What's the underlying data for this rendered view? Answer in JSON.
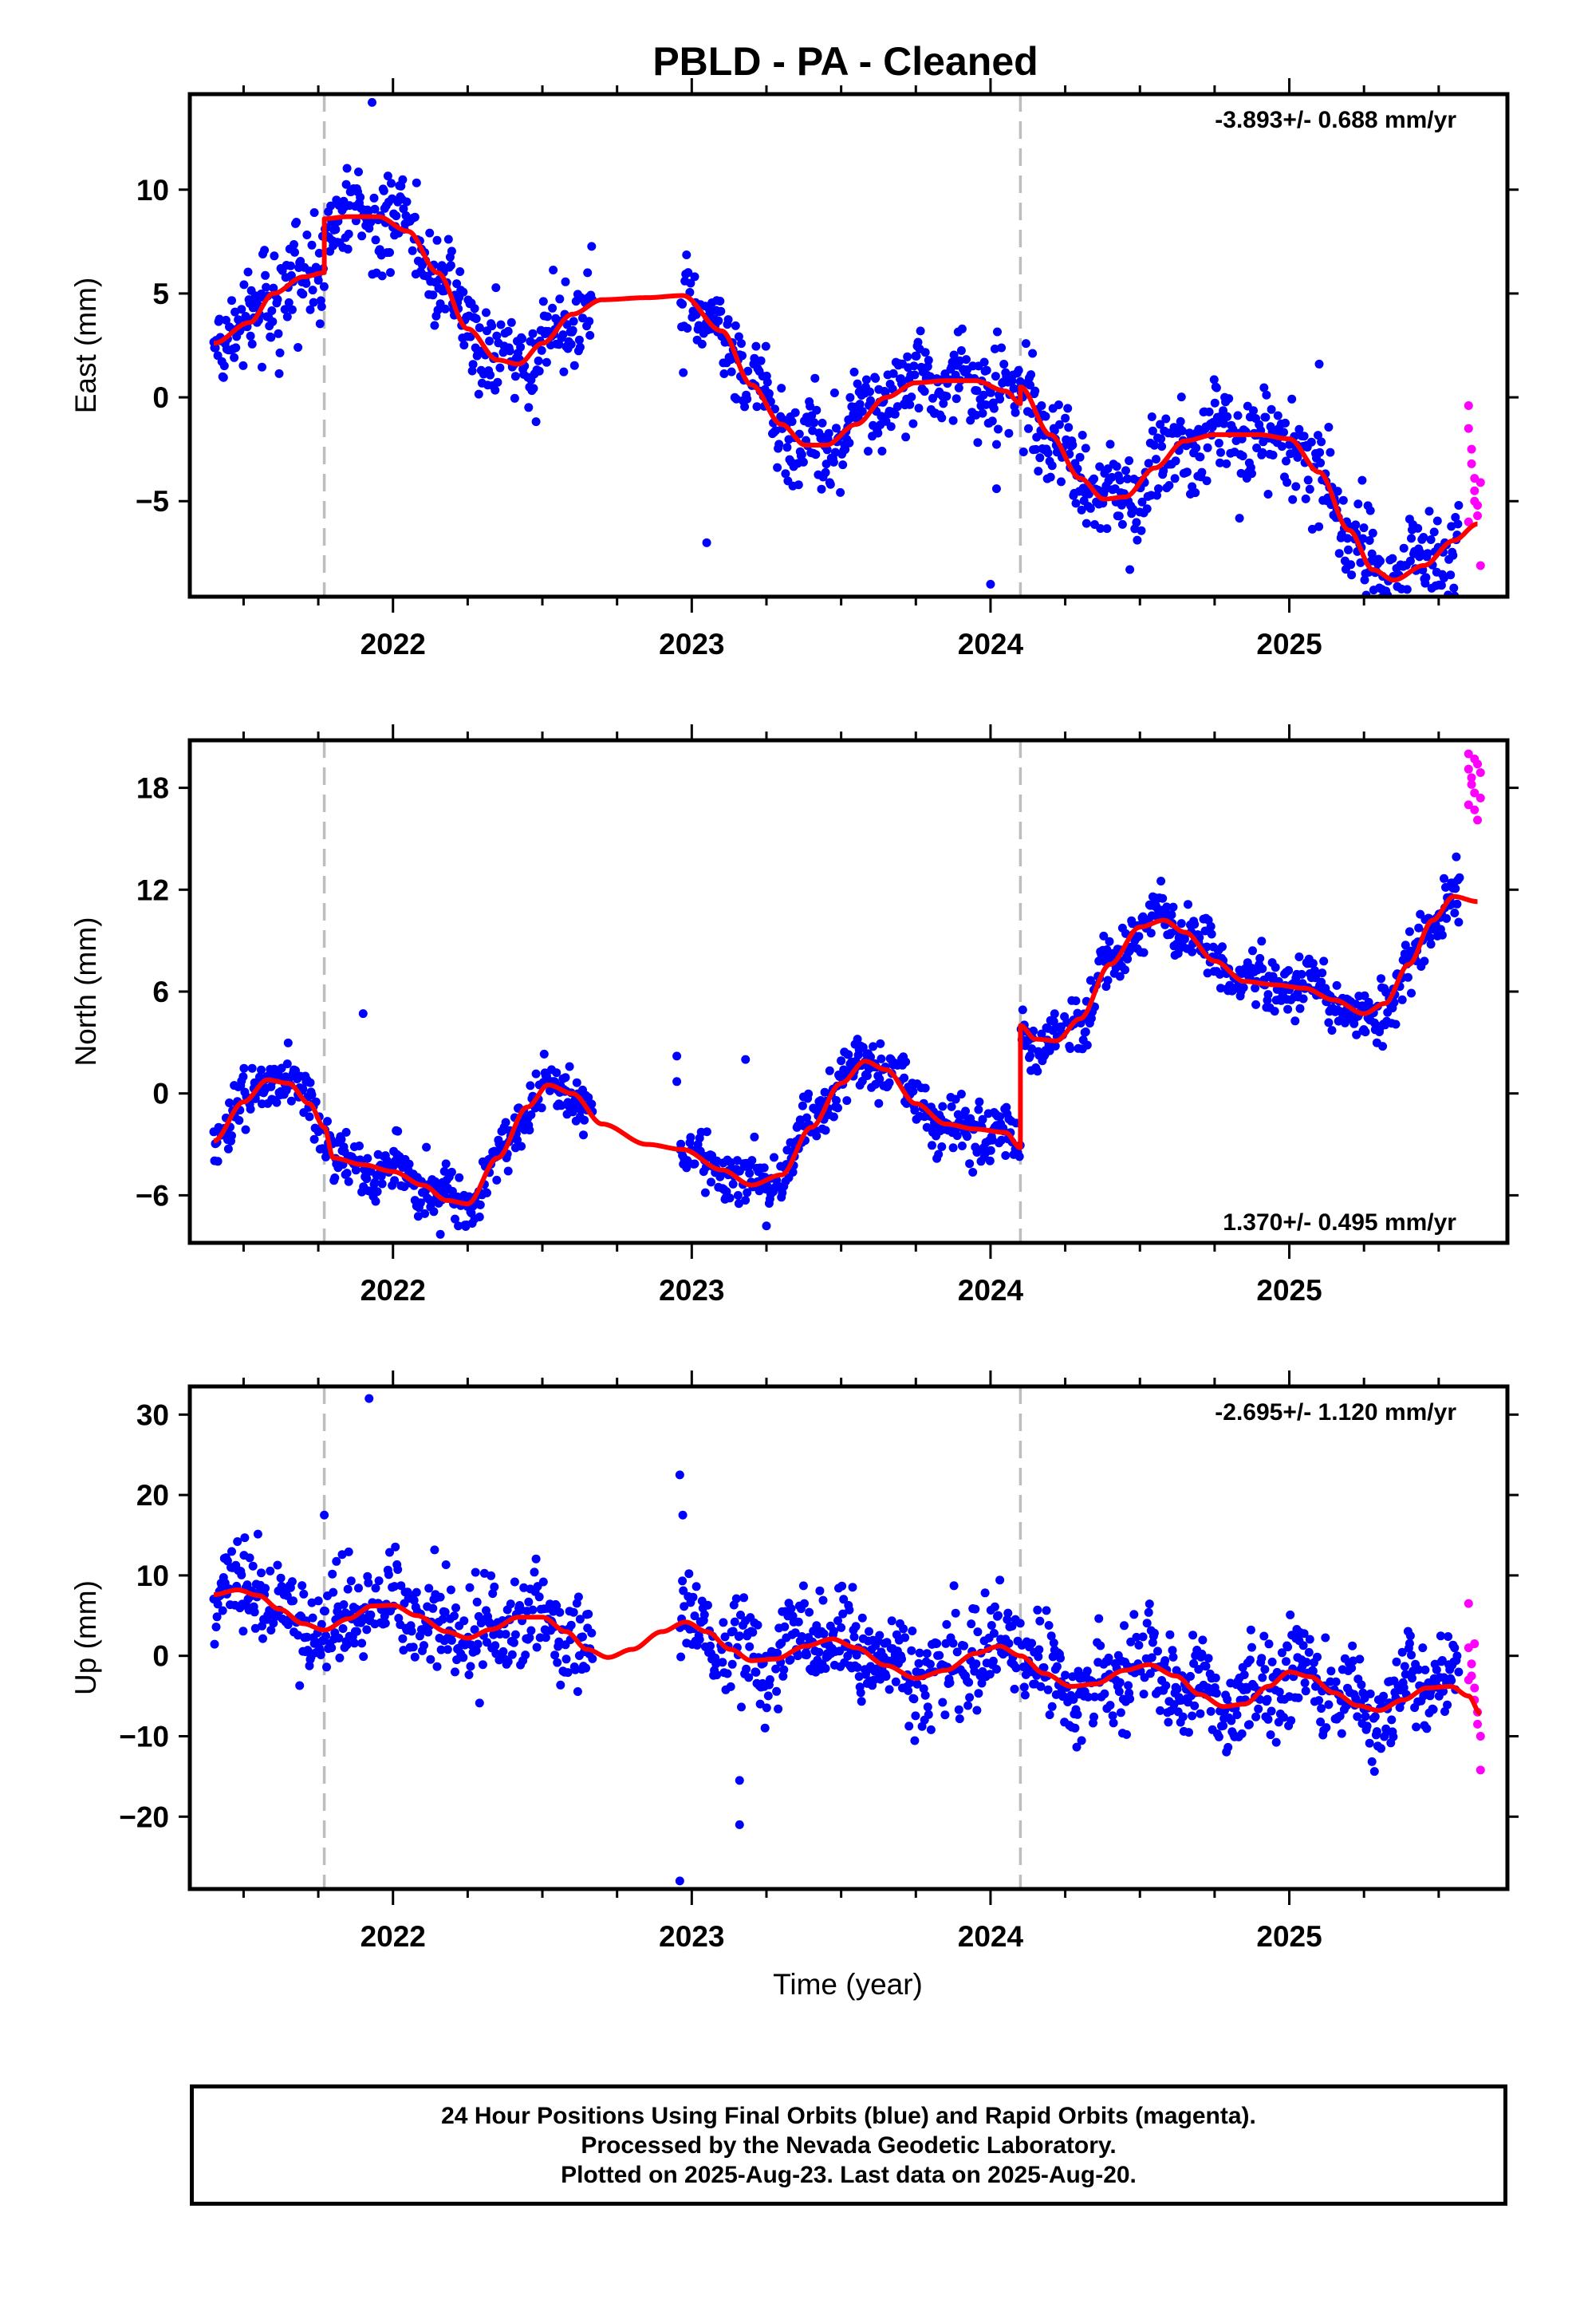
{
  "title": "PBLD  - PA - Cleaned",
  "x_label": "Time (year)",
  "colors": {
    "final_orbits": "#0000ff",
    "rapid_orbits": "#ff00ff",
    "model": "#ff0000",
    "offset_lines": "#bdbdbd",
    "axes": "#000000"
  },
  "footer": {
    "line1": "24 Hour Positions Using Final Orbits (blue) and Rapid Orbits (magenta).",
    "line2": "Processed by the Nevada Geodetic Laboratory.",
    "line3": "Plotted on 2025-Aug-23. Last data on 2025-Aug-20."
  },
  "chart_data": [
    {
      "type": "scatter",
      "component": "east",
      "ylabel": "East (mm)",
      "rate_label": "-3.893+/- 0.688 mm/yr",
      "rate_position": "top-right",
      "xlim": [
        2021.32,
        2025.73
      ],
      "ylim": [
        -9.6,
        14.6
      ],
      "yticks": [
        -5,
        0,
        5,
        10
      ],
      "xticks": [
        2022,
        2023,
        2024,
        2025
      ],
      "offset_epochs": [
        2021.77,
        2024.1
      ],
      "gap": [
        2022.67,
        2022.96
      ],
      "final_end": 2025.57,
      "model_anchors": [
        [
          2021.4,
          2.6
        ],
        [
          2021.52,
          3.6
        ],
        [
          2021.6,
          5.0
        ],
        [
          2021.7,
          5.8
        ],
        [
          2021.77,
          6.0
        ],
        [
          2021.77,
          8.6
        ],
        [
          2021.85,
          8.7
        ],
        [
          2021.95,
          8.7
        ],
        [
          2022.05,
          8.0
        ],
        [
          2022.15,
          6.0
        ],
        [
          2022.25,
          3.3
        ],
        [
          2022.35,
          1.8
        ],
        [
          2022.42,
          1.6
        ],
        [
          2022.5,
          2.6
        ],
        [
          2022.6,
          4.0
        ],
        [
          2022.7,
          4.7
        ],
        [
          2022.85,
          4.8
        ],
        [
          2022.97,
          4.9
        ],
        [
          2023.1,
          3.2
        ],
        [
          2023.2,
          0.6
        ],
        [
          2023.3,
          -1.3
        ],
        [
          2023.38,
          -2.3
        ],
        [
          2023.45,
          -2.3
        ],
        [
          2023.55,
          -1.3
        ],
        [
          2023.65,
          0.0
        ],
        [
          2023.75,
          0.7
        ],
        [
          2023.85,
          0.8
        ],
        [
          2023.95,
          0.8
        ],
        [
          2024.05,
          0.3
        ],
        [
          2024.1,
          -0.3
        ],
        [
          2024.1,
          0.5
        ],
        [
          2024.2,
          -1.8
        ],
        [
          2024.3,
          -3.9
        ],
        [
          2024.38,
          -4.9
        ],
        [
          2024.45,
          -4.8
        ],
        [
          2024.55,
          -3.4
        ],
        [
          2024.65,
          -2.1
        ],
        [
          2024.75,
          -1.8
        ],
        [
          2024.9,
          -1.8
        ],
        [
          2025.0,
          -2.0
        ],
        [
          2025.1,
          -3.6
        ],
        [
          2025.2,
          -6.4
        ],
        [
          2025.28,
          -8.3
        ],
        [
          2025.35,
          -8.8
        ],
        [
          2025.45,
          -8.1
        ],
        [
          2025.55,
          -6.9
        ],
        [
          2025.63,
          -6.1
        ]
      ],
      "scatter_noise": 1.1,
      "outliers": [
        [
          2021.93,
          14.2
        ],
        [
          2023.05,
          -7.0
        ],
        [
          2024.0,
          -9.0
        ],
        [
          2024.02,
          -4.4
        ],
        [
          2025.1,
          1.6
        ]
      ],
      "rapid_points": [
        [
          2025.6,
          -0.4
        ],
        [
          2025.6,
          -1.5
        ],
        [
          2025.61,
          -2.5
        ],
        [
          2025.61,
          -3.2
        ],
        [
          2025.62,
          -3.9
        ],
        [
          2025.62,
          -4.5
        ],
        [
          2025.63,
          -5.2
        ],
        [
          2025.63,
          -5.7
        ],
        [
          2025.64,
          -4.1
        ],
        [
          2025.64,
          -8.1
        ],
        [
          2025.6,
          -6.0
        ],
        [
          2025.62,
          -5.0
        ]
      ]
    },
    {
      "type": "scatter",
      "component": "north",
      "ylabel": "North (mm)",
      "rate_label": "1.370+/- 0.495 mm/yr",
      "rate_position": "bottom-right",
      "xlim": [
        2021.32,
        2025.73
      ],
      "ylim": [
        -8.8,
        20.8
      ],
      "yticks": [
        -6,
        0,
        6,
        12,
        18
      ],
      "xticks": [
        2022,
        2023,
        2024,
        2025
      ],
      "offset_epochs": [
        2021.77,
        2024.1
      ],
      "gap": [
        2022.67,
        2022.96
      ],
      "final_end": 2025.57,
      "model_anchors": [
        [
          2021.4,
          -2.8
        ],
        [
          2021.5,
          -0.5
        ],
        [
          2021.58,
          0.8
        ],
        [
          2021.65,
          0.6
        ],
        [
          2021.72,
          -0.6
        ],
        [
          2021.77,
          -2.0
        ],
        [
          2021.8,
          -3.8
        ],
        [
          2021.9,
          -4.2
        ],
        [
          2022.0,
          -4.6
        ],
        [
          2022.1,
          -5.4
        ],
        [
          2022.18,
          -6.3
        ],
        [
          2022.25,
          -6.5
        ],
        [
          2022.35,
          -3.8
        ],
        [
          2022.45,
          -0.8
        ],
        [
          2022.52,
          0.5
        ],
        [
          2022.6,
          0.0
        ],
        [
          2022.7,
          -1.8
        ],
        [
          2022.85,
          -3.0
        ],
        [
          2022.97,
          -3.3
        ],
        [
          2023.1,
          -4.5
        ],
        [
          2023.2,
          -5.4
        ],
        [
          2023.3,
          -4.8
        ],
        [
          2023.4,
          -2.0
        ],
        [
          2023.5,
          0.6
        ],
        [
          2023.58,
          1.9
        ],
        [
          2023.65,
          1.4
        ],
        [
          2023.75,
          -0.6
        ],
        [
          2023.85,
          -1.8
        ],
        [
          2023.95,
          -2.1
        ],
        [
          2024.05,
          -2.3
        ],
        [
          2024.1,
          -3.2
        ],
        [
          2024.1,
          4.0
        ],
        [
          2024.15,
          3.2
        ],
        [
          2024.22,
          3.1
        ],
        [
          2024.3,
          4.4
        ],
        [
          2024.4,
          7.6
        ],
        [
          2024.5,
          9.8
        ],
        [
          2024.58,
          10.2
        ],
        [
          2024.65,
          9.5
        ],
        [
          2024.75,
          7.8
        ],
        [
          2024.85,
          6.6
        ],
        [
          2024.95,
          6.4
        ],
        [
          2025.05,
          6.2
        ],
        [
          2025.15,
          5.5
        ],
        [
          2025.25,
          4.7
        ],
        [
          2025.32,
          5.3
        ],
        [
          2025.4,
          7.6
        ],
        [
          2025.48,
          10.2
        ],
        [
          2025.55,
          11.6
        ],
        [
          2025.63,
          11.3
        ]
      ],
      "scatter_noise": 0.8,
      "outliers": [
        [
          2021.9,
          4.7
        ],
        [
          2022.95,
          2.2
        ],
        [
          2022.95,
          0.7
        ],
        [
          2023.18,
          2.0
        ],
        [
          2023.25,
          -7.8
        ]
      ],
      "rapid_points": [
        [
          2025.6,
          20.0
        ],
        [
          2025.6,
          19.1
        ],
        [
          2025.61,
          18.6
        ],
        [
          2025.61,
          18.2
        ],
        [
          2025.62,
          17.7
        ],
        [
          2025.62,
          16.7
        ],
        [
          2025.63,
          16.1
        ],
        [
          2025.63,
          19.4
        ],
        [
          2025.64,
          17.4
        ],
        [
          2025.64,
          18.9
        ],
        [
          2025.6,
          17.0
        ],
        [
          2025.62,
          19.7
        ]
      ]
    },
    {
      "type": "scatter",
      "component": "up",
      "ylabel": "Up (mm)",
      "rate_label": "-2.695+/- 1.120 mm/yr",
      "rate_position": "top-right",
      "xlim": [
        2021.32,
        2025.73
      ],
      "ylim": [
        -29.0,
        33.5
      ],
      "yticks": [
        -20,
        -10,
        0,
        10,
        20,
        30
      ],
      "xticks": [
        2022,
        2023,
        2024,
        2025
      ],
      "offset_epochs": [
        2021.77,
        2024.1
      ],
      "gap": [
        2022.67,
        2022.96
      ],
      "final_end": 2025.57,
      "model_anchors": [
        [
          2021.4,
          7.6
        ],
        [
          2021.48,
          8.2
        ],
        [
          2021.55,
          7.5
        ],
        [
          2021.62,
          5.8
        ],
        [
          2021.7,
          4.0
        ],
        [
          2021.77,
          3.2
        ],
        [
          2021.85,
          4.6
        ],
        [
          2021.93,
          6.2
        ],
        [
          2022.0,
          6.3
        ],
        [
          2022.08,
          5.0
        ],
        [
          2022.18,
          3.0
        ],
        [
          2022.25,
          2.2
        ],
        [
          2022.33,
          3.3
        ],
        [
          2022.42,
          4.8
        ],
        [
          2022.5,
          4.8
        ],
        [
          2022.58,
          3.0
        ],
        [
          2022.65,
          0.8
        ],
        [
          2022.72,
          -0.2
        ],
        [
          2022.8,
          0.8
        ],
        [
          2022.9,
          3.0
        ],
        [
          2022.98,
          4.2
        ],
        [
          2023.05,
          3.0
        ],
        [
          2023.13,
          0.8
        ],
        [
          2023.2,
          -0.6
        ],
        [
          2023.28,
          -0.4
        ],
        [
          2023.38,
          1.2
        ],
        [
          2023.47,
          2.1
        ],
        [
          2023.55,
          1.0
        ],
        [
          2023.65,
          -1.2
        ],
        [
          2023.75,
          -2.8
        ],
        [
          2023.85,
          -1.8
        ],
        [
          2023.95,
          0.3
        ],
        [
          2024.03,
          1.2
        ],
        [
          2024.1,
          0.0
        ],
        [
          2024.18,
          -2.2
        ],
        [
          2024.27,
          -3.8
        ],
        [
          2024.35,
          -3.5
        ],
        [
          2024.45,
          -1.8
        ],
        [
          2024.53,
          -1.1
        ],
        [
          2024.62,
          -2.5
        ],
        [
          2024.7,
          -4.8
        ],
        [
          2024.78,
          -6.3
        ],
        [
          2024.85,
          -6.0
        ],
        [
          2024.93,
          -3.8
        ],
        [
          2025.0,
          -2.0
        ],
        [
          2025.07,
          -2.6
        ],
        [
          2025.15,
          -4.6
        ],
        [
          2025.23,
          -6.2
        ],
        [
          2025.3,
          -6.8
        ],
        [
          2025.38,
          -5.5
        ],
        [
          2025.46,
          -4.0
        ],
        [
          2025.54,
          -3.8
        ],
        [
          2025.6,
          -5.0
        ],
        [
          2025.64,
          -7.2
        ]
      ],
      "scatter_noise": 3.0,
      "outliers": [
        [
          2021.92,
          32.0
        ],
        [
          2022.96,
          22.5
        ],
        [
          2022.97,
          17.5
        ],
        [
          2023.16,
          -21.0
        ],
        [
          2023.16,
          -15.5
        ],
        [
          2022.96,
          -28.0
        ],
        [
          2021.77,
          17.5
        ]
      ],
      "rapid_points": [
        [
          2025.6,
          6.5
        ],
        [
          2025.6,
          1.0
        ],
        [
          2025.61,
          -1.0
        ],
        [
          2025.61,
          -2.5
        ],
        [
          2025.62,
          -4.0
        ],
        [
          2025.62,
          -5.5
        ],
        [
          2025.63,
          -7.0
        ],
        [
          2025.63,
          -8.5
        ],
        [
          2025.64,
          -10.0
        ],
        [
          2025.64,
          -14.2
        ],
        [
          2025.6,
          -3.0
        ],
        [
          2025.62,
          1.5
        ]
      ]
    }
  ]
}
